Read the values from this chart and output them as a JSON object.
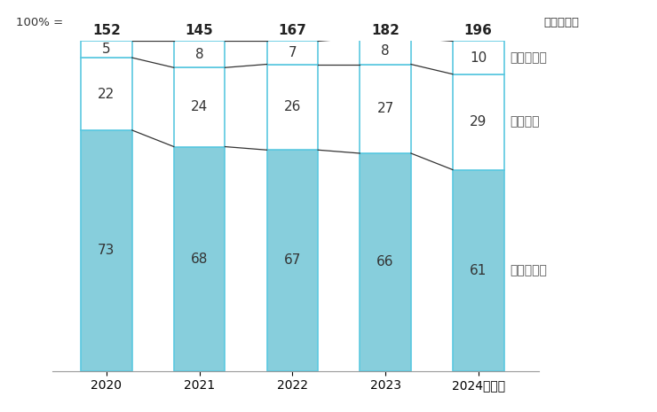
{
  "years": [
    "2020",
    "2021",
    "2022",
    "2023",
    "2024年予測"
  ],
  "totals": [
    152,
    145,
    167,
    182,
    196
  ],
  "segments": {
    "traditional": [
      73,
      68,
      67,
      66,
      61
    ],
    "modern": [
      22,
      24,
      26,
      27,
      29
    ],
    "ecommerce": [
      5,
      8,
      7,
      8,
      10
    ]
  },
  "labels": {
    "traditional": "伝統的貳易",
    "modern": "現代貳易",
    "ecommerce": "電子商取引"
  },
  "top_label": "100% =",
  "unit_label": "十億米ドル",
  "background": "#ffffff",
  "bar_width": 0.55,
  "color_traditional": "#87CEDC",
  "color_modern": "#ffffff",
  "color_ecommerce": "#ffffff",
  "outline_color": "#5BC8E0",
  "connecting_line_color": "#333333"
}
